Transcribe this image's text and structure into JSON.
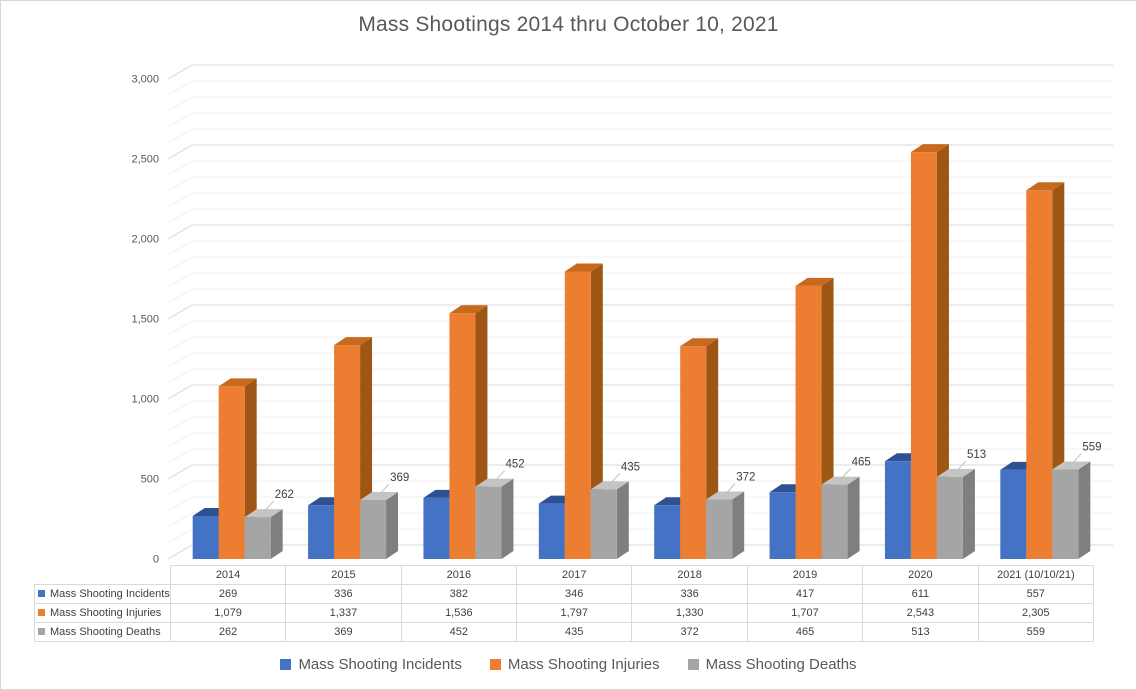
{
  "window": {
    "background": "#FFFFFF",
    "border_color": "#D7D7D7"
  },
  "title": "Mass Shootings 2014 thru October 10, 2021",
  "chart_data": {
    "type": "bar",
    "subtype": "3d-clustered-column-with-data-table",
    "title": "Mass Shootings 2014 thru October 10, 2021",
    "categories": [
      "2014",
      "2015",
      "2016",
      "2017",
      "2018",
      "2019",
      "2020",
      "2021 (10/10/21)"
    ],
    "series": [
      {
        "name": "Mass Shooting Incidents",
        "color": "#4472C4",
        "top_color": "#2E5291",
        "side_color": "#27477E",
        "values": [
          269,
          336,
          382,
          346,
          336,
          417,
          611,
          557
        ]
      },
      {
        "name": "Mass Shooting Injuries",
        "color": "#ED7D31",
        "top_color": "#C76A1E",
        "side_color": "#9E5614",
        "values": [
          1079,
          1337,
          1536,
          1797,
          1330,
          1707,
          2543,
          2305
        ]
      },
      {
        "name": "Mass Shooting Deaths",
        "color": "#A5A5A5",
        "top_color": "#C4C4C4",
        "side_color": "#7F7F7F",
        "values": [
          262,
          369,
          452,
          435,
          372,
          465,
          513,
          559
        ]
      }
    ],
    "data_labels": {
      "series_index": 2,
      "values": [
        "262",
        "369",
        "452",
        "435",
        "372",
        "465",
        "513",
        "559"
      ]
    },
    "y_axis": {
      "min": 0,
      "max": 3000,
      "major_unit": 500,
      "minor_unit": 100,
      "tick_labels": [
        "0",
        "500",
        "1,000",
        "1,500",
        "2,000",
        "2,500",
        "3,000"
      ]
    },
    "gridlines": {
      "major_color": "#D9D9D9",
      "minor_color": "#F2F2F2",
      "leader_color": "#BFBFBF"
    },
    "legend_position": "bottom",
    "has_data_table": true
  },
  "data_table": {
    "header": [
      "2014",
      "2015",
      "2016",
      "2017",
      "2018",
      "2019",
      "2020",
      "2021 (10/10/21)"
    ],
    "rows": [
      {
        "label": "Mass Shooting Incidents",
        "swatch_color": "#4472C4",
        "cells": [
          "269",
          "336",
          "382",
          "346",
          "336",
          "417",
          "611",
          "557"
        ]
      },
      {
        "label": "Mass Shooting Injuries",
        "swatch_color": "#ED7D31",
        "cells": [
          "1,079",
          "1,337",
          "1,536",
          "1,797",
          "1,330",
          "1,707",
          "2,543",
          "2,305"
        ]
      },
      {
        "label": "Mass Shooting Deaths",
        "swatch_color": "#A5A5A5",
        "cells": [
          "262",
          "369",
          "452",
          "435",
          "372",
          "465",
          "513",
          "559"
        ]
      }
    ]
  },
  "legend": {
    "items": [
      {
        "label": "Mass Shooting Incidents",
        "color": "#4472C4"
      },
      {
        "label": "Mass Shooting Injuries",
        "color": "#ED7D31"
      },
      {
        "label": "Mass Shooting Deaths",
        "color": "#A5A5A5"
      }
    ]
  }
}
